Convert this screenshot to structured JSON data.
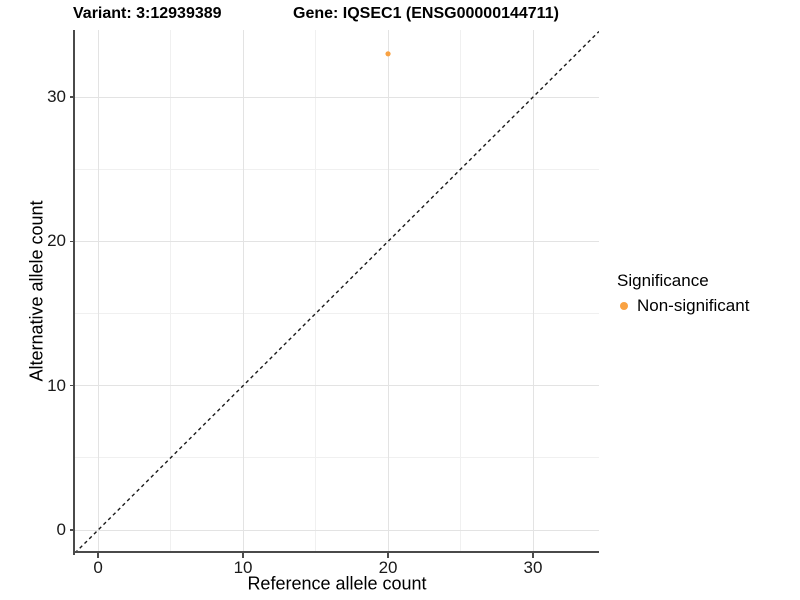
{
  "chart_data": {
    "type": "scatter",
    "titles": {
      "left": "Variant: 3:12939389",
      "right": "Gene: IQSEC1 (ENSG00000144711)"
    },
    "xlabel": "Reference allele count",
    "ylabel": "Alternative allele count",
    "x_ticks": [
      0,
      10,
      20,
      30
    ],
    "y_ticks": [
      0,
      10,
      20,
      30
    ],
    "x_minor_ticks": [
      5,
      15,
      25
    ],
    "y_minor_ticks": [
      5,
      15,
      25
    ],
    "xlim": [
      -1.59,
      34.55
    ],
    "ylim": [
      -1.59,
      34.65
    ],
    "grid": {
      "major": true,
      "minor": true
    },
    "points": [
      {
        "x": 20,
        "y": 33,
        "significance": "Non-significant"
      }
    ],
    "reference_line": {
      "kind": "identity",
      "dashed": true,
      "color": "#1a1a1a"
    },
    "legend": {
      "position": "right",
      "title": "Significance",
      "items": [
        {
          "label": "Non-significant",
          "color": "#F9A242"
        }
      ]
    },
    "style_colors": {
      "grid_major": "#e3e3e3",
      "grid_minor": "#f0f0f0",
      "axis": "#4a4a4a",
      "point": "#F9A242"
    }
  }
}
